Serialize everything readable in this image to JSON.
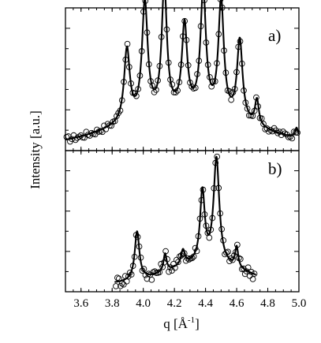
{
  "chart_data": {
    "type": "scatter",
    "xlabel_main": "q [Å",
    "xlabel_sup": "-1",
    "xlabel_end": "]",
    "ylabel": "Intensity [a.u.]",
    "xlim": [
      3.5,
      5.0
    ],
    "x_ticks": [
      "3.6",
      "3.8",
      "4.0",
      "4.2",
      "4.4",
      "4.6",
      "4.8",
      "5.0"
    ],
    "x_tick_values": [
      3.6,
      3.8,
      4.0,
      4.2,
      4.4,
      4.6,
      4.8,
      5.0
    ],
    "panels": [
      {
        "label": "a)",
        "ylim": [
          0,
          1.08
        ],
        "peaks": [
          {
            "x": 3.895,
            "h": 0.56,
            "w": 0.022
          },
          {
            "x": 4.01,
            "h": 0.88,
            "w": 0.022
          },
          {
            "x": 4.135,
            "h": 0.97,
            "w": 0.02
          },
          {
            "x": 4.265,
            "h": 0.66,
            "w": 0.02
          },
          {
            "x": 4.385,
            "h": 0.93,
            "w": 0.021
          },
          {
            "x": 4.5,
            "h": 0.88,
            "w": 0.021
          },
          {
            "x": 4.62,
            "h": 0.62,
            "w": 0.021
          },
          {
            "x": 4.73,
            "h": 0.2,
            "w": 0.015
          },
          {
            "x": 4.985,
            "h": 0.08,
            "w": 0.012
          }
        ],
        "baseline": {
          "amp": 0.26,
          "center": 4.27,
          "width": 0.42,
          "floor": 0.03
        }
      },
      {
        "label": "b)",
        "ylim": [
          0,
          1.08
        ],
        "peaks": [
          {
            "x": 3.96,
            "h": 0.38,
            "w": 0.018
          },
          {
            "x": 4.14,
            "h": 0.14,
            "w": 0.012
          },
          {
            "x": 4.255,
            "h": 0.12,
            "w": 0.015
          },
          {
            "x": 4.38,
            "h": 0.55,
            "w": 0.018
          },
          {
            "x": 4.47,
            "h": 0.82,
            "w": 0.022
          },
          {
            "x": 4.6,
            "h": 0.16,
            "w": 0.012
          }
        ],
        "baseline": {
          "amp": 0.16,
          "center": 4.4,
          "width": 0.24,
          "floor": 0.06
        },
        "x_start": 3.82,
        "x_end": 4.72
      }
    ],
    "series": [
      {
        "style": "solid-line"
      },
      {
        "style": "open-circles"
      }
    ]
  }
}
